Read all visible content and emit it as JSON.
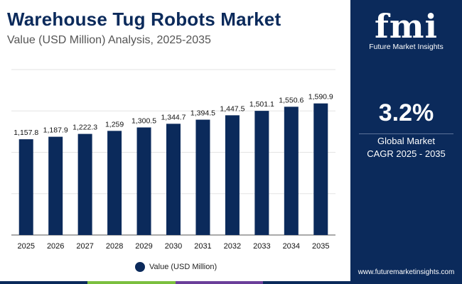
{
  "header": {
    "title": "Warehouse Tug Robots Market",
    "subtitle": "Value (USD Million) Analysis, 2025-2035"
  },
  "side_panel": {
    "logo_mark": "fmi",
    "logo_text": "Future Market Insights",
    "cagr_value": "3.2%",
    "cagr_label_line1": "Global Market",
    "cagr_label_line2": "CAGR 2025 - 2035",
    "website": "www.futuremarketinsights.com"
  },
  "colors": {
    "bar": "#0b2a5b",
    "panel": "#0b2a5b",
    "strip": [
      "#0b2a5b",
      "#7bbf3e",
      "#6a3e9a",
      "#0b2a5b"
    ]
  },
  "chart_data": {
    "type": "bar",
    "categories": [
      "2025",
      "2026",
      "2027",
      "2028",
      "2029",
      "2030",
      "2031",
      "2032",
      "2033",
      "2034",
      "2035"
    ],
    "series": [
      {
        "name": "Value (USD Million)",
        "values": [
          1157.8,
          1187.9,
          1222.3,
          1259,
          1300.5,
          1344.7,
          1394.5,
          1447.5,
          1501.1,
          1550.6,
          1590.9
        ]
      }
    ],
    "data_labels": [
      "1,157.8",
      "1,187.9",
      "1,222.3",
      "1,259",
      "1,300.5",
      "1,344.7",
      "1,394.5",
      "1,447.5",
      "1,501.1",
      "1,550.6",
      "1,590.9"
    ],
    "ylim": [
      0,
      2000
    ],
    "grid": true,
    "legend_position": "bottom"
  }
}
